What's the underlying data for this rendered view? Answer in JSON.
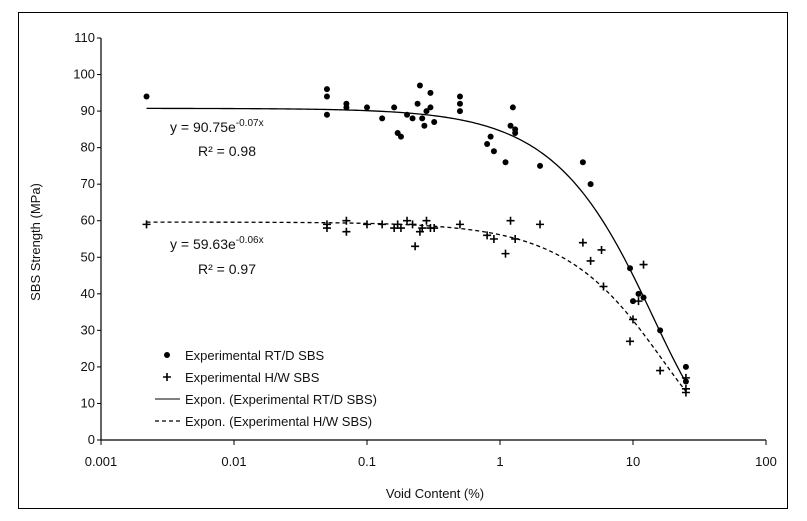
{
  "chart_data": {
    "type": "scatter",
    "title": "",
    "xlabel": "Void Content (%)",
    "ylabel": "SBS Strength (MPa)",
    "xscale": "log",
    "xlim": [
      0.001,
      100
    ],
    "ylim": [
      0,
      110
    ],
    "x_tick_labels": [
      "0.001",
      "0.01",
      "0.1",
      "1",
      "10",
      "100"
    ],
    "y_tick_labels": [
      "0",
      "10",
      "20",
      "30",
      "40",
      "50",
      "60",
      "70",
      "80",
      "90",
      "100",
      "110"
    ],
    "grid": false,
    "legend_position": "bottom-left",
    "series": [
      {
        "name": "Experimental RT/D SBS",
        "marker": "filled-circle",
        "points": [
          [
            0.0022,
            94
          ],
          [
            0.05,
            89
          ],
          [
            0.05,
            96
          ],
          [
            0.05,
            94
          ],
          [
            0.07,
            92
          ],
          [
            0.07,
            91
          ],
          [
            0.1,
            91
          ],
          [
            0.13,
            88
          ],
          [
            0.16,
            91
          ],
          [
            0.17,
            84
          ],
          [
            0.18,
            83
          ],
          [
            0.2,
            89
          ],
          [
            0.22,
            88
          ],
          [
            0.24,
            92
          ],
          [
            0.25,
            97
          ],
          [
            0.26,
            88
          ],
          [
            0.27,
            86
          ],
          [
            0.28,
            90
          ],
          [
            0.3,
            95
          ],
          [
            0.3,
            91
          ],
          [
            0.32,
            87
          ],
          [
            0.5,
            94
          ],
          [
            0.5,
            92
          ],
          [
            0.5,
            90
          ],
          [
            0.8,
            81
          ],
          [
            0.85,
            83
          ],
          [
            0.9,
            79
          ],
          [
            1.1,
            76
          ],
          [
            1.2,
            86
          ],
          [
            1.25,
            91
          ],
          [
            1.3,
            85
          ],
          [
            1.3,
            84
          ],
          [
            2,
            75
          ],
          [
            4.2,
            76
          ],
          [
            4.8,
            70
          ],
          [
            9.5,
            47
          ],
          [
            10,
            38
          ],
          [
            11,
            40
          ],
          [
            12,
            39
          ],
          [
            16,
            30
          ],
          [
            25,
            20
          ],
          [
            25,
            16
          ]
        ]
      },
      {
        "name": "Experimental H/W SBS",
        "marker": "plus",
        "points": [
          [
            0.0022,
            59
          ],
          [
            0.05,
            58
          ],
          [
            0.05,
            59
          ],
          [
            0.07,
            57
          ],
          [
            0.07,
            60
          ],
          [
            0.1,
            59
          ],
          [
            0.13,
            59
          ],
          [
            0.16,
            58
          ],
          [
            0.17,
            59
          ],
          [
            0.18,
            58
          ],
          [
            0.2,
            60
          ],
          [
            0.22,
            59
          ],
          [
            0.23,
            53
          ],
          [
            0.25,
            57
          ],
          [
            0.26,
            58
          ],
          [
            0.28,
            60
          ],
          [
            0.3,
            58
          ],
          [
            0.32,
            58
          ],
          [
            0.5,
            59
          ],
          [
            0.8,
            56
          ],
          [
            0.9,
            55
          ],
          [
            1.1,
            51
          ],
          [
            1.2,
            60
          ],
          [
            1.3,
            55
          ],
          [
            2,
            59
          ],
          [
            4.2,
            54
          ],
          [
            4.8,
            49
          ],
          [
            5.8,
            52
          ],
          [
            6,
            42
          ],
          [
            9.5,
            27
          ],
          [
            10,
            33
          ],
          [
            11,
            38
          ],
          [
            12,
            48
          ],
          [
            16,
            19
          ],
          [
            25,
            13
          ],
          [
            25,
            14
          ],
          [
            25,
            17
          ]
        ]
      }
    ],
    "fits": [
      {
        "name": "Expon. (Experimental RT/D SBS)",
        "style": "solid",
        "a": 90.75,
        "b": -0.07
      },
      {
        "name": "Expon. (Experimental H/W SBS)",
        "style": "dashed",
        "a": 59.63,
        "b": -0.06
      }
    ],
    "annotations": [
      {
        "equation": "y = 90.75e",
        "exponent": "-0.07x",
        "r2": "R² = 0.98"
      },
      {
        "equation": "y = 59.63e",
        "exponent": "-0.06x",
        "r2": "R² = 0.97"
      }
    ]
  }
}
